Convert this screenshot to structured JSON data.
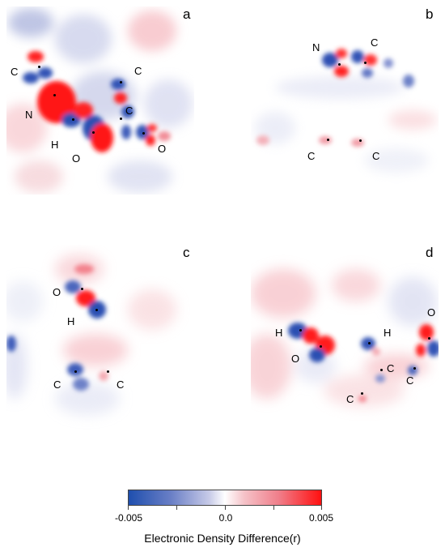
{
  "panels": {
    "a": {
      "letter": "a",
      "atoms": [
        {
          "label": "C"
        },
        {
          "label": "C"
        },
        {
          "label": "N"
        },
        {
          "label": "C"
        },
        {
          "label": "H"
        },
        {
          "label": "O"
        },
        {
          "label": "O"
        }
      ]
    },
    "b": {
      "letter": "b",
      "atoms": [
        {
          "label": "N"
        },
        {
          "label": "C"
        },
        {
          "label": "C"
        },
        {
          "label": "C"
        }
      ]
    },
    "c": {
      "letter": "c",
      "atoms": [
        {
          "label": "O"
        },
        {
          "label": "H"
        },
        {
          "label": "C"
        },
        {
          "label": "C"
        }
      ]
    },
    "d": {
      "letter": "d",
      "atoms": [
        {
          "label": "H"
        },
        {
          "label": "O"
        },
        {
          "label": "H"
        },
        {
          "label": "O"
        },
        {
          "label": "C"
        },
        {
          "label": "C"
        },
        {
          "label": "C"
        }
      ]
    }
  },
  "colorbar": {
    "min_label": "-0.005",
    "mid_label": "0.0",
    "max_label": "0.005",
    "title": "Electronic Density Difference(r)",
    "colors": {
      "negative": "#1f4fae",
      "zero": "#ffffff",
      "positive": "#ff1010"
    }
  }
}
